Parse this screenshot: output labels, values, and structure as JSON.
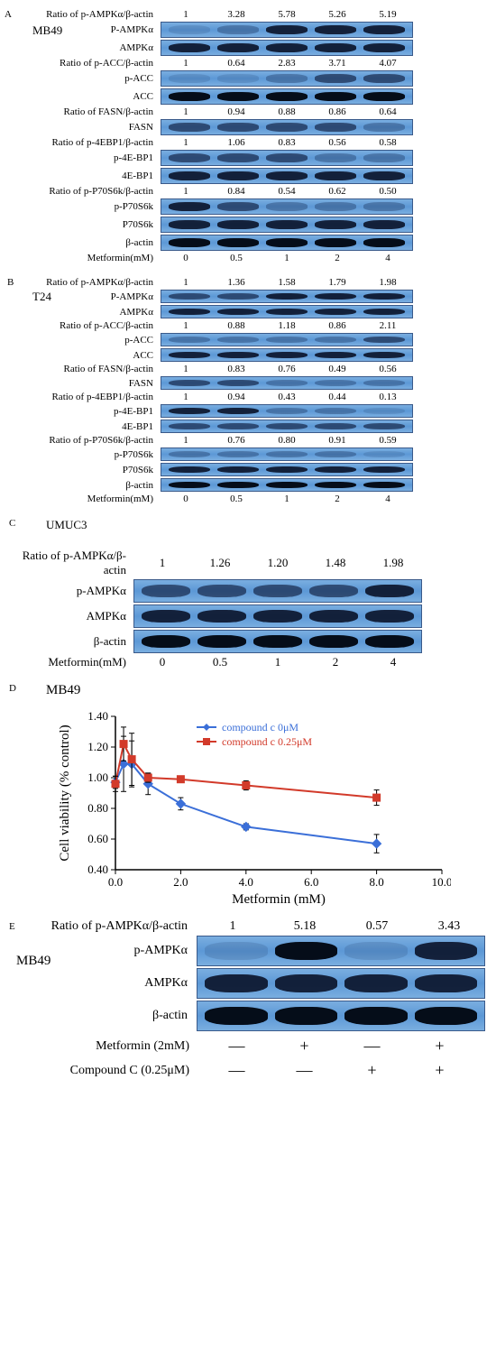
{
  "panelA": {
    "label": "A",
    "cell_line": "MB49",
    "concentration_label": "Metformin(mM)",
    "concentrations": [
      "0",
      "0.5",
      "1",
      "2",
      "4"
    ],
    "rows": [
      {
        "ratio_label": "Ratio of p-AMPKα/β-actin",
        "ratios": [
          "1",
          "3.28",
          "5.78",
          "5.26",
          "5.19"
        ],
        "name": "P-AMPKα",
        "bands": [
          "faint",
          "light",
          "dark",
          "dark",
          "dark"
        ]
      },
      {
        "name": "AMPKα",
        "bands": [
          "dark",
          "dark",
          "dark",
          "dark",
          "dark"
        ]
      },
      {
        "ratio_label": "Ratio of p-ACC/β-actin",
        "ratios": [
          "1",
          "0.64",
          "2.83",
          "3.71",
          "4.07"
        ],
        "name": "p-ACC",
        "bands": [
          "faint",
          "faint",
          "light",
          "med",
          "med"
        ]
      },
      {
        "name": "ACC",
        "bands": [
          "vdark",
          "vdark",
          "vdark",
          "vdark",
          "vdark"
        ]
      },
      {
        "ratio_label": "Ratio of FASN/β-actin",
        "ratios": [
          "1",
          "0.94",
          "0.88",
          "0.86",
          "0.64"
        ],
        "name": "FASN",
        "bands": [
          "med",
          "med",
          "med",
          "med",
          "light"
        ]
      },
      {
        "ratio_label": "Ratio of p-4EBP1/β-actin",
        "ratios": [
          "1",
          "1.06",
          "0.83",
          "0.56",
          "0.58"
        ],
        "name": "p-4E-BP1",
        "bands": [
          "med",
          "med",
          "med",
          "light",
          "light"
        ]
      },
      {
        "name": "4E-BP1",
        "bands": [
          "dark",
          "dark",
          "dark",
          "dark",
          "dark"
        ]
      },
      {
        "ratio_label": "Ratio of p-P70S6k/β-actin",
        "ratios": [
          "1",
          "0.84",
          "0.54",
          "0.62",
          "0.50"
        ],
        "name": "p-P70S6k",
        "bands": [
          "dark",
          "med",
          "light",
          "light",
          "light"
        ]
      },
      {
        "name": "P70S6k",
        "bands": [
          "dark",
          "dark",
          "dark",
          "dark",
          "dark"
        ]
      },
      {
        "name": "β-actin",
        "bands": [
          "vdark",
          "vdark",
          "vdark",
          "vdark",
          "vdark"
        ]
      }
    ]
  },
  "panelB": {
    "label": "B",
    "cell_line": "T24",
    "concentration_label": "Metformin(mM)",
    "concentrations": [
      "0",
      "0.5",
      "1",
      "2",
      "4"
    ],
    "rows": [
      {
        "ratio_label": "Ratio of p-AMPKα/β-actin",
        "ratios": [
          "1",
          "1.36",
          "1.58",
          "1.79",
          "1.98"
        ],
        "name": "P-AMPKα",
        "bands": [
          "med",
          "med",
          "dark",
          "dark",
          "dark"
        ]
      },
      {
        "name": "AMPKα",
        "bands": [
          "dark",
          "dark",
          "dark",
          "dark",
          "dark"
        ]
      },
      {
        "ratio_label": "Ratio of p-ACC/β-actin",
        "ratios": [
          "1",
          "0.88",
          "1.18",
          "0.86",
          "2.11"
        ],
        "name": "p-ACC",
        "bands": [
          "light",
          "light",
          "light",
          "light",
          "med"
        ]
      },
      {
        "name": "ACC",
        "bands": [
          "dark",
          "dark",
          "dark",
          "dark",
          "dark"
        ]
      },
      {
        "ratio_label": "Ratio of FASN/β-actin",
        "ratios": [
          "1",
          "0.83",
          "0.76",
          "0.49",
          "0.56"
        ],
        "name": "FASN",
        "bands": [
          "med",
          "med",
          "light",
          "light",
          "light"
        ]
      },
      {
        "ratio_label": "Ratio of p-4EBP1/β-actin",
        "ratios": [
          "1",
          "0.94",
          "0.43",
          "0.44",
          "0.13"
        ],
        "name": "p-4E-BP1",
        "bands": [
          "dark",
          "dark",
          "light",
          "light",
          "faint"
        ]
      },
      {
        "name": "4E-BP1",
        "bands": [
          "med",
          "med",
          "med",
          "med",
          "med"
        ]
      },
      {
        "ratio_label": "Ratio of p-P70S6k/β-actin",
        "ratios": [
          "1",
          "0.76",
          "0.80",
          "0.91",
          "0.59"
        ],
        "name": "p-P70S6k",
        "bands": [
          "light",
          "light",
          "light",
          "light",
          "faint"
        ]
      },
      {
        "name": "P70S6k",
        "bands": [
          "dark",
          "dark",
          "dark",
          "dark",
          "dark"
        ]
      },
      {
        "name": "β-actin",
        "bands": [
          "vdark",
          "vdark",
          "vdark",
          "vdark",
          "vdark"
        ]
      }
    ]
  },
  "panelC": {
    "label": "C",
    "cell_line": "UMUC3",
    "concentration_label": "Metformin(mM)",
    "concentrations": [
      "0",
      "0.5",
      "1",
      "2",
      "4"
    ],
    "rows": [
      {
        "ratio_label": "Ratio of p-AMPKα/β-actin",
        "ratios": [
          "1",
          "1.26",
          "1.20",
          "1.48",
          "1.98"
        ],
        "name": "p-AMPKα",
        "bands": [
          "med",
          "med",
          "med",
          "med",
          "dark"
        ]
      },
      {
        "name": "AMPKα",
        "bands": [
          "dark",
          "dark",
          "dark",
          "dark",
          "dark"
        ]
      },
      {
        "name": "β-actin",
        "bands": [
          "vdark",
          "vdark",
          "vdark",
          "vdark",
          "vdark"
        ]
      }
    ]
  },
  "panelD": {
    "label": "D",
    "cell_line": "MB49",
    "chart": {
      "type": "line",
      "x_label": "Metformin (mM)",
      "y_label": "Cell viability (% control)",
      "xlim": [
        0,
        10
      ],
      "xtick_step": 2.0,
      "ylim": [
        0.4,
        1.4
      ],
      "ytick_step": 0.2,
      "xticks": [
        "0.0",
        "2.0",
        "4.0",
        "6.0",
        "8.0",
        "10.0"
      ],
      "yticks": [
        "0.40",
        "0.60",
        "0.80",
        "1.00",
        "1.20",
        "1.40"
      ],
      "background_color": "#ffffff",
      "axis_color": "#000000",
      "series": [
        {
          "name": "compound c 0μM",
          "color": "#3b6fd8",
          "marker": "diamond",
          "x": [
            0,
            0.25,
            0.5,
            1,
            2,
            4,
            8
          ],
          "y": [
            0.97,
            1.09,
            1.09,
            0.96,
            0.83,
            0.68,
            0.57
          ],
          "err": [
            0.04,
            0.18,
            0.15,
            0.07,
            0.04,
            0.02,
            0.06
          ]
        },
        {
          "name": "compound c 0.25μM",
          "color": "#d23a2a",
          "marker": "square",
          "x": [
            0,
            0.25,
            0.5,
            1,
            2,
            4,
            8
          ],
          "y": [
            0.96,
            1.22,
            1.12,
            1.0,
            0.99,
            0.95,
            0.87
          ],
          "err": [
            0.05,
            0.11,
            0.17,
            0.03,
            0.02,
            0.03,
            0.05
          ]
        }
      ]
    }
  },
  "panelE": {
    "label": "E",
    "cell_line": "MB49",
    "ratio_label": "Ratio of p-AMPKα/β-actin",
    "ratios": [
      "1",
      "5.18",
      "0.57",
      "3.43"
    ],
    "rows": [
      {
        "name": "p-AMPKα",
        "bands": [
          "faint",
          "vdark",
          "faint",
          "dark"
        ]
      },
      {
        "name": "AMPKα",
        "bands": [
          "dark",
          "dark",
          "dark",
          "dark"
        ]
      },
      {
        "name": "β-actin",
        "bands": [
          "vdark",
          "vdark",
          "vdark",
          "vdark"
        ]
      }
    ],
    "treatments": [
      {
        "label": "Metformin (2mM)",
        "vals": [
          "—",
          "+",
          "—",
          "+"
        ]
      },
      {
        "label": "Compound C (0.25μM)",
        "vals": [
          "—",
          "—",
          "+",
          "+"
        ]
      }
    ]
  }
}
